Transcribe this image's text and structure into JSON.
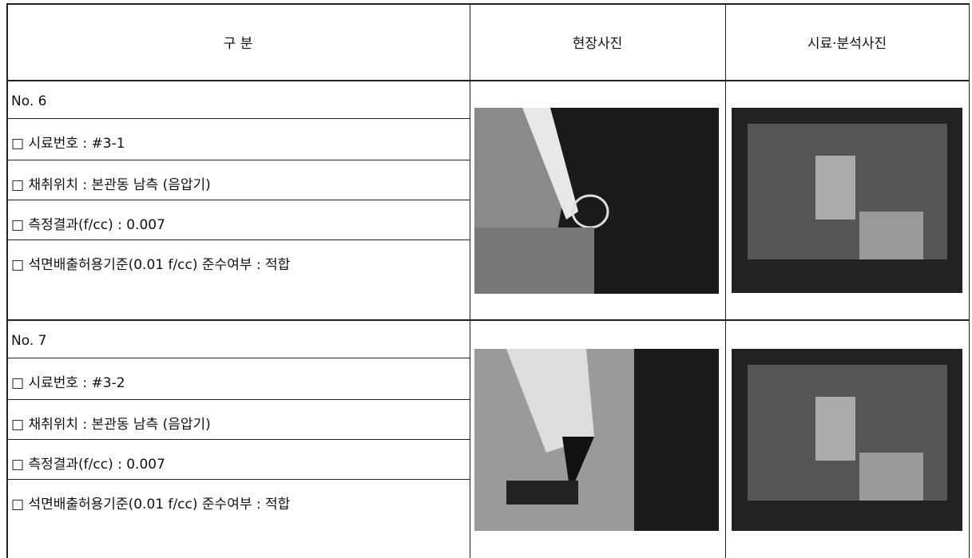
{
  "table": {
    "header": [
      "구 분",
      "현장사진",
      "시료·분석사진"
    ],
    "entries": [
      {
        "lines": [
          "No. 6",
          "□ 시료번호 : #3-1",
          "□ 채취위치 : 본관동 남측 (음압기)",
          "□ 측정결과(f/cc) : 0.007",
          "□ 석면배출허용기준(0.01 f/cc) 준수여부 : 적합"
        ]
      },
      {
        "lines": [
          "No. 7",
          "□ 시료번호 : #3-2",
          "□ 채취위치 : 본관동 남측 (음압기)",
          "□ 측정결과(f/cc) : 0.007",
          "□ 석면배출허용기준(0.01 f/cc) 준수여부 : 적합"
        ]
      }
    ]
  }
}
